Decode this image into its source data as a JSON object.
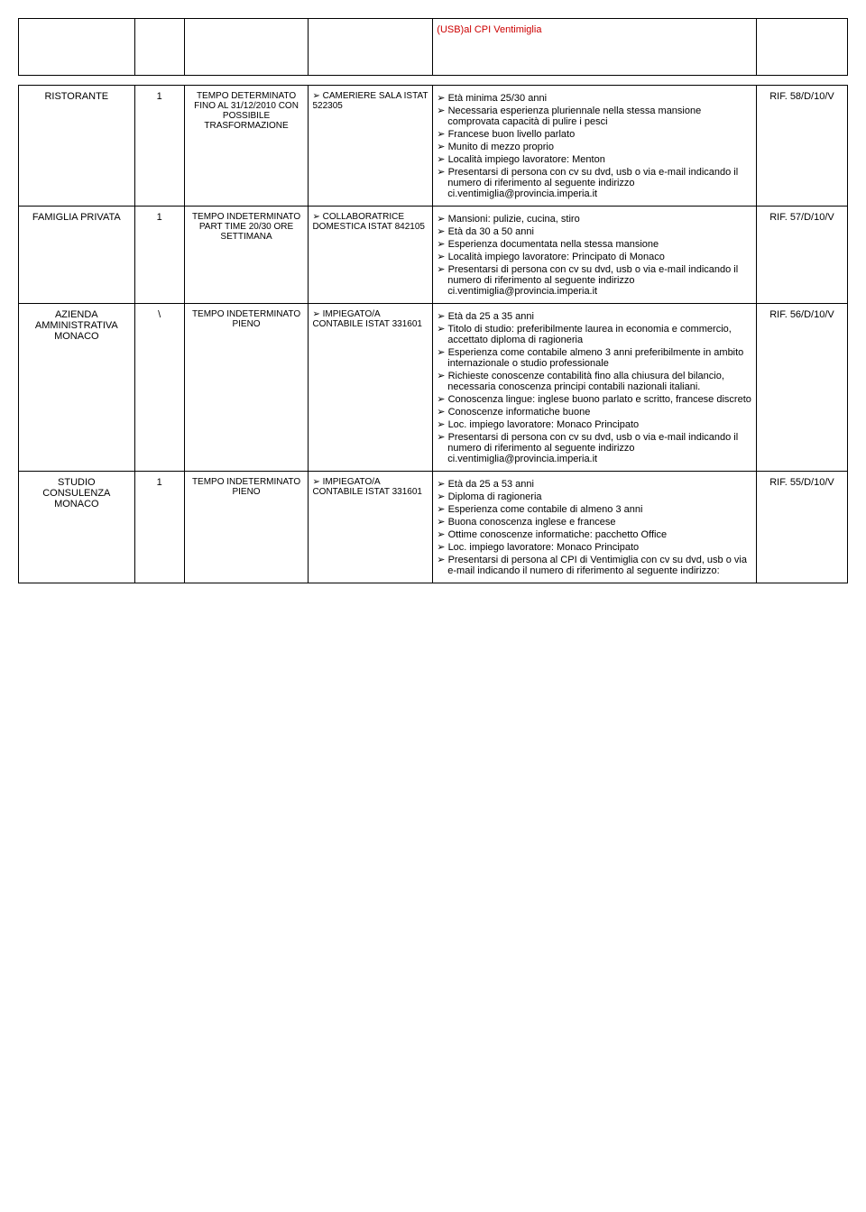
{
  "topCell": "(USB)al CPI Ventimiglia",
  "rows": [
    {
      "employer": "RISTORANTE",
      "num": "1",
      "contract": "TEMPO DETERMINATO FINO AL 31/12/2010 CON POSSIBILE TRASFORMAZIONE",
      "role": "CAMERIERE SALA ISTAT 522305",
      "details": [
        "Età minima 25/30 anni",
        "Necessaria esperienza pluriennale nella stessa mansione comprovata capacità di pulire i pesci",
        "Francese buon livello parlato",
        "Munito di mezzo proprio",
        "Località impiego lavoratore: Menton",
        "Presentarsi di persona con cv su dvd, usb o via e-mail indicando il numero di riferimento al seguente indirizzo ci.ventimiglia@provincia.imperia.it"
      ],
      "ref": "RIF. 58/D/10/V"
    },
    {
      "employer": "FAMIGLIA PRIVATA",
      "num": "1",
      "contract": "TEMPO INDETERMINATO PART TIME 20/30 ORE SETTIMANA",
      "role": "COLLABORATRICE DOMESTICA ISTAT 842105",
      "details": [
        "Mansioni: pulizie, cucina, stiro",
        "Età da 30 a 50 anni",
        "Esperienza documentata nella stessa mansione",
        "Località impiego lavoratore: Principato di Monaco",
        "Presentarsi di persona con cv su dvd, usb o via e-mail indicando il numero di riferimento al seguente indirizzo ci.ventimiglia@provincia.imperia.it"
      ],
      "ref": "RIF. 57/D/10/V"
    },
    {
      "employer": "AZIENDA AMMINISTRATIVA MONACO",
      "num": "\\",
      "contract": "TEMPO INDETERMINATO PIENO",
      "role": "IMPIEGATO/A CONTABILE ISTAT 331601",
      "details": [
        "Età da 25 a 35 anni",
        "Titolo di studio: preferibilmente laurea in economia e commercio, accettato diploma di ragioneria",
        "Esperienza come contabile almeno 3 anni preferibilmente in ambito internazionale o studio professionale",
        "Richieste conoscenze contabilità fino alla chiusura del bilancio, necessaria conoscenza principi contabili nazionali italiani.",
        "Conoscenza lingue: inglese buono parlato e scritto, francese discreto",
        "Conoscenze informatiche buone",
        "Loc. impiego lavoratore: Monaco Principato",
        "Presentarsi di persona con cv su dvd, usb o via e-mail indicando il numero di riferimento al seguente indirizzo ci.ventimiglia@provincia.imperia.it"
      ],
      "ref": "RIF. 56/D/10/V"
    },
    {
      "employer": "STUDIO CONSULENZA MONACO",
      "num": "1",
      "contract": "TEMPO INDETERMINATO PIENO",
      "role": "IMPIEGATO/A CONTABILE ISTAT 331601",
      "details": [
        "Età da 25 a 53 anni",
        "Diploma di ragioneria",
        "Esperienza come contabile di almeno 3 anni",
        "Buona conoscenza inglese e francese",
        "Ottime conoscenze informatiche: pacchetto Office",
        "Loc. impiego lavoratore: Monaco Principato",
        "Presentarsi di persona al CPI di Ventimiglia con cv su dvd, usb o via e-mail indicando il numero di riferimento al seguente indirizzo:"
      ],
      "ref": "RIF. 55/D/10/V"
    }
  ]
}
